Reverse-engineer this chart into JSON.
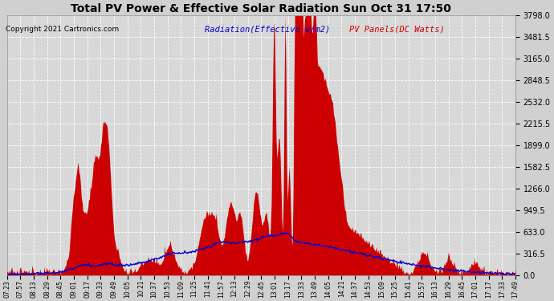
{
  "title": "Total PV Power & Effective Solar Radiation Sun Oct 31 17:50",
  "copyright": "Copyright 2021 Cartronics.com",
  "legend_radiation": "Radiation(Effective w/m2)",
  "legend_pv": "PV Panels(DC Watts)",
  "ymax": 3798.0,
  "ymin": 0.0,
  "ytick_interval": 316.5,
  "ytick_labels": [
    "0.0",
    "316.5",
    "633.0",
    "949.5",
    "1266.0",
    "1582.5",
    "1899.0",
    "2215.5",
    "2532.0",
    "2848.5",
    "3165.0",
    "3481.5",
    "3798.0"
  ],
  "bg_color": "#d0d0d0",
  "plot_bg_color": "#d8d8d8",
  "grid_color": "#ffffff",
  "pv_color": "#cc0000",
  "radiation_color": "#0000cc",
  "title_color": "#000000",
  "copyright_color": "#000000",
  "legend_radiation_color": "#0000cc",
  "legend_pv_color": "#cc0000",
  "x_labels": [
    "07:23",
    "07:57",
    "08:13",
    "08:29",
    "08:45",
    "09:01",
    "09:17",
    "09:33",
    "09:49",
    "10:05",
    "10:21",
    "10:37",
    "10:53",
    "11:09",
    "11:25",
    "11:41",
    "11:57",
    "12:13",
    "12:29",
    "12:45",
    "13:01",
    "13:17",
    "13:33",
    "13:49",
    "14:05",
    "14:21",
    "14:37",
    "14:53",
    "15:09",
    "15:25",
    "15:41",
    "15:57",
    "16:13",
    "16:29",
    "16:45",
    "17:01",
    "17:17",
    "17:33",
    "17:49"
  ]
}
